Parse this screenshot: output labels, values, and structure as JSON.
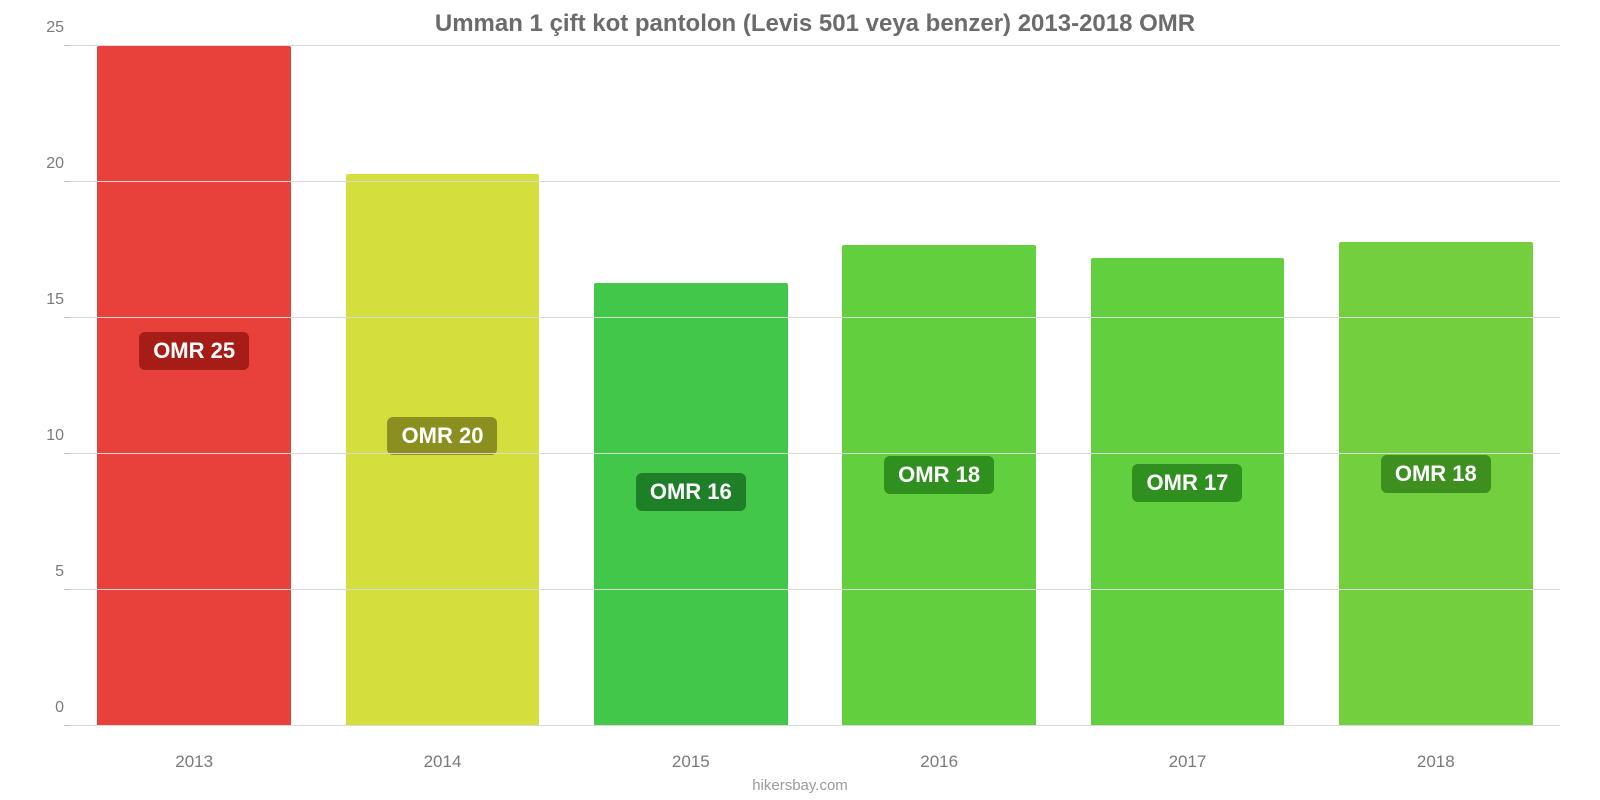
{
  "chart": {
    "type": "bar",
    "title": "Umman 1 çift kot pantolon (Levis 501 veya benzer) 2013-2018 OMR",
    "title_color": "#6b6b6b",
    "title_fontsize": 24,
    "source": "hikersbay.com",
    "source_color": "#9a9a9a",
    "source_fontsize": 15,
    "background_color": "#ffffff",
    "ylim": [
      0,
      25
    ],
    "ytick_step": 5,
    "yticks": [
      "0",
      "5",
      "10",
      "15",
      "20",
      "25"
    ],
    "ytick_color": "#7a7a7a",
    "ytick_fontsize": 16,
    "grid_color": "#d9d9d9",
    "axis_line_color": "#bfbfbf",
    "categories": [
      "2013",
      "2014",
      "2015",
      "2016",
      "2017",
      "2018"
    ],
    "xtick_color": "#7a7a7a",
    "xtick_fontsize": 17,
    "bar_width_pct": 78,
    "badge_fontsize": 22,
    "badge_radius": 6,
    "bars": [
      {
        "value": 25.0,
        "label": "OMR 25",
        "color": "#e8403a",
        "badge_bg": "#a61d17",
        "badge_top_pct": 42
      },
      {
        "value": 20.3,
        "label": "OMR 20",
        "color": "#d4df3e",
        "badge_bg": "#8a8f1f",
        "badge_top_pct": 44
      },
      {
        "value": 16.3,
        "label": "OMR 16",
        "color": "#42c748",
        "badge_bg": "#1f7f28",
        "badge_top_pct": 43
      },
      {
        "value": 17.7,
        "label": "OMR 18",
        "color": "#62cf3f",
        "badge_bg": "#2f8f1f",
        "badge_top_pct": 44
      },
      {
        "value": 17.2,
        "label": "OMR 17",
        "color": "#62cf3f",
        "badge_bg": "#2f8f1f",
        "badge_top_pct": 44
      },
      {
        "value": 17.8,
        "label": "OMR 18",
        "color": "#74cf3f",
        "badge_bg": "#3d8f1f",
        "badge_top_pct": 44
      }
    ]
  }
}
